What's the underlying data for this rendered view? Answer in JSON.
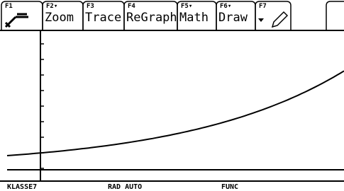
{
  "toolbar": [
    {
      "key": "F1"
    },
    {
      "key": "F2▾",
      "label": "Zoom"
    },
    {
      "key": "F3",
      "label": "Trace"
    },
    {
      "key": "F4",
      "label": "ReGraph"
    },
    {
      "key": "F5▾",
      "label": "Math"
    },
    {
      "key": "F6▾",
      "label": "Draw"
    },
    {
      "key": "F7"
    }
  ],
  "status": [
    "KLASSE7",
    "RAD AUTO",
    "FUNC"
  ]
}
